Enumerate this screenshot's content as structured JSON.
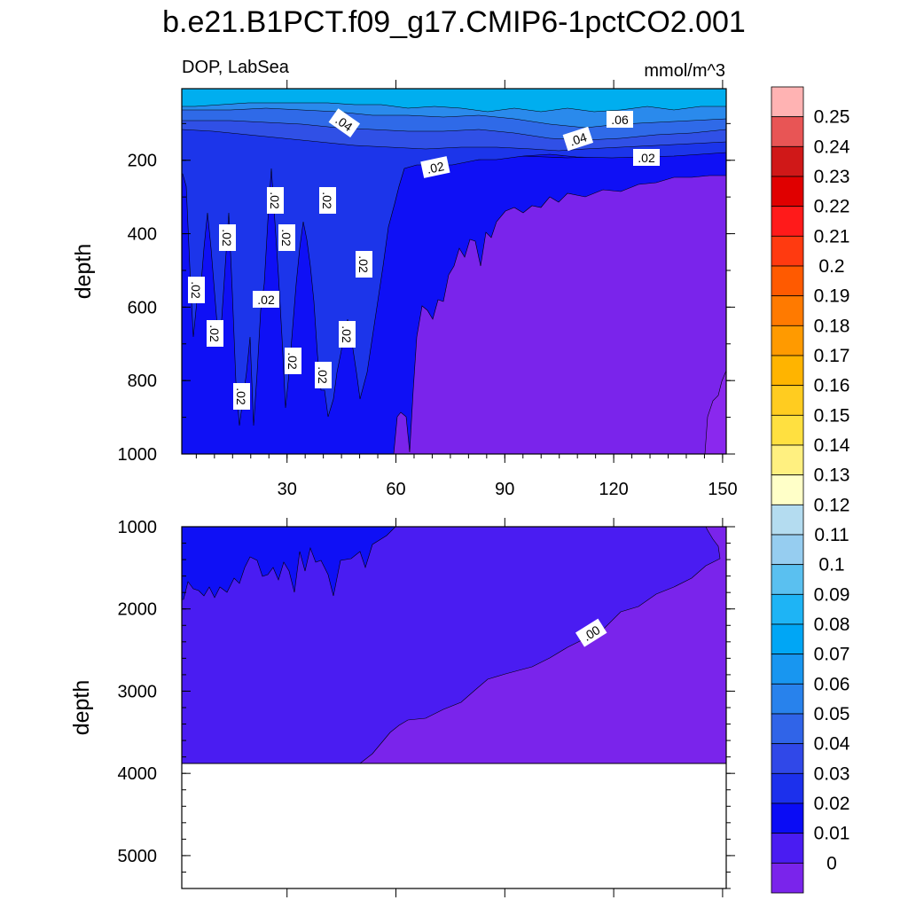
{
  "title": "b.e21.B1PCT.f09_g17.CMIP6-1pctCO2.001",
  "chart_data": [
    {
      "type": "heatmap",
      "panel": "upper",
      "variable_label": "DOP, LabSea",
      "units_label": "mmol/m^3",
      "ylabel": "depth",
      "xlabel": "",
      "xlim": [
        1,
        151
      ],
      "ylim": [
        1000,
        5
      ],
      "y_reversed": true,
      "xticks": [
        "30",
        "60",
        "90",
        "120",
        "150"
      ],
      "yticks": [
        "200",
        "400",
        "600",
        "800",
        "1000"
      ],
      "layers": [
        {
          "range": "0.07-0.08",
          "surface_depths": [
            5,
            50
          ],
          "color": "#00AEEF"
        },
        {
          "range": "0.05-0.06",
          "surface_depths": [
            50,
            150
          ],
          "color": "#2F78E8"
        },
        {
          "range": "0.02-0.03",
          "surface_depths": [
            150,
            220
          ],
          "color": "#1C35EA"
        },
        {
          "range": "0.01-0.02",
          "surface_depths": [
            220,
            1000
          ],
          "color": "#0F10F5"
        },
        {
          "range": "0.00-0.01",
          "surface_depths": [
            260,
            1000
          ],
          "color": "#7A24EB"
        }
      ],
      "contour_labels": [
        ".04",
        ".06",
        ".04",
        ".02",
        ".02",
        ".02",
        ".02",
        ".02",
        ".02",
        ".02",
        ".02",
        ".02",
        ".02",
        ".02",
        ".02",
        ".02",
        ".02"
      ]
    },
    {
      "type": "heatmap",
      "panel": "lower",
      "ylabel": "depth",
      "ylim": [
        5400,
        1000
      ],
      "y_reversed": true,
      "yticks": [
        "1000",
        "2000",
        "3000",
        "4000",
        "5000"
      ],
      "bottom_of_data": 3870,
      "layers": [
        {
          "range": "0.01-0.02",
          "depths": [
            1000,
            1700
          ],
          "color": "#0F10F5"
        },
        {
          "range": "0.00-0.01",
          "depths": [
            1700,
            3870
          ],
          "color": "#4A1CF2"
        },
        {
          "range": "<0.00",
          "depths": [
            1000,
            3870
          ],
          "color": "#7A24EB"
        }
      ],
      "contour_labels": [
        ".00"
      ]
    }
  ],
  "colorbar": {
    "labels": [
      "0.25",
      "0.24",
      "0.23",
      "0.22",
      "0.21",
      "0.2",
      "0.19",
      "0.18",
      "0.17",
      "0.16",
      "0.15",
      "0.14",
      "0.13",
      "0.12",
      "0.11",
      "0.1",
      "0.09",
      "0.08",
      "0.07",
      "0.06",
      "0.05",
      "0.04",
      "0.03",
      "0.02",
      "0.01",
      "0"
    ],
    "colors": [
      "#FFB3B3",
      "#E85555",
      "#D01818",
      "#E00000",
      "#FF1A1A",
      "#FF3A10",
      "#FF5A00",
      "#FF7A00",
      "#FF9A00",
      "#FFB400",
      "#FFCC20",
      "#FFE040",
      "#FFF080",
      "#FFFFC8",
      "#B4DCF0",
      "#96CDF0",
      "#5AC0F0",
      "#1EB4F5",
      "#00A6F5",
      "#1896F0",
      "#2882EC",
      "#3064E8",
      "#3048E8",
      "#1C30EC",
      "#0A0CF5",
      "#4A1CF2",
      "#7A24EB"
    ]
  }
}
